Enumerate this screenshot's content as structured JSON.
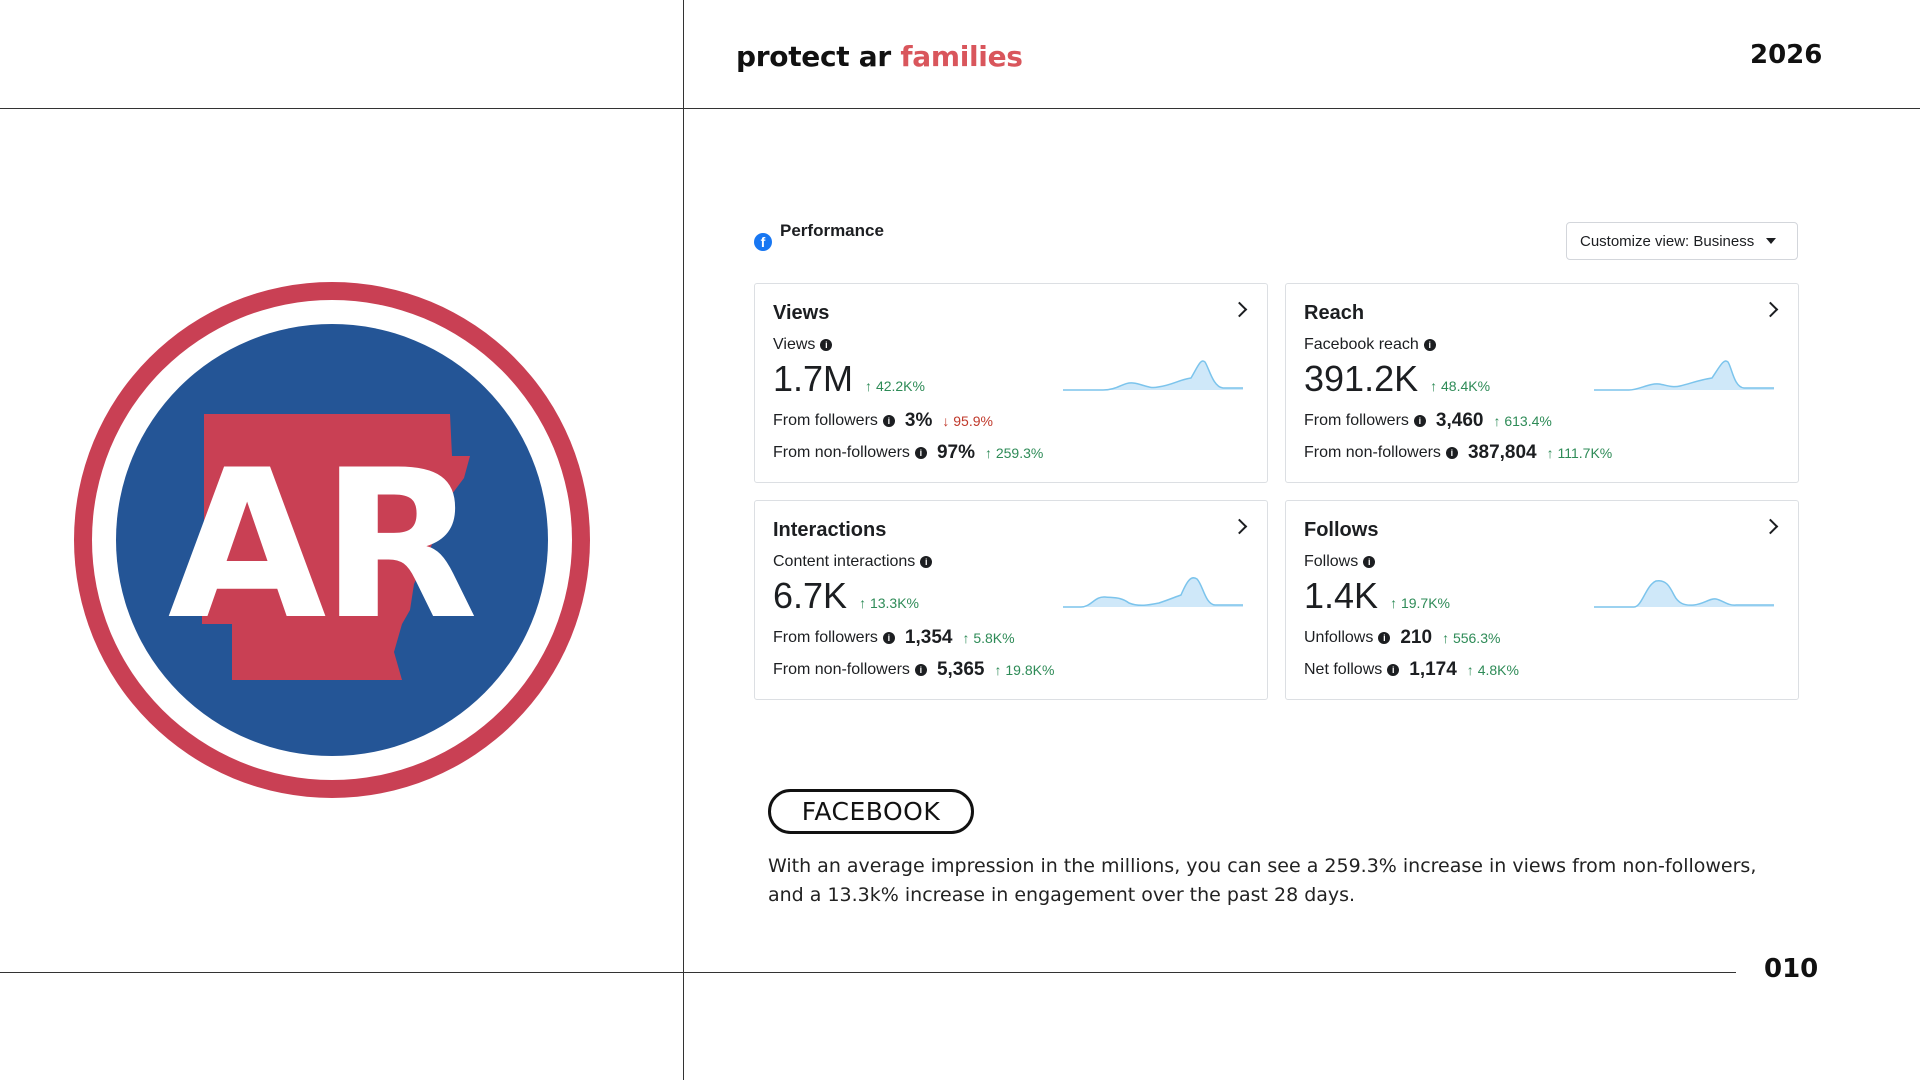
{
  "brand": {
    "prefix": "protect ar",
    "accent": "families",
    "accent_color": "#d9565c"
  },
  "year": "2026",
  "page_number": "010",
  "logo": {
    "text": "AR",
    "ring_color": "#c94054",
    "disc_color": "#245596",
    "state_color": "#c94054"
  },
  "performance": {
    "title": "Performance",
    "platform_icon": "facebook-icon",
    "customize_label": "Customize view: Business"
  },
  "cards": [
    {
      "title": "Views",
      "metric_label": "Views",
      "value": "1.7M",
      "change": "42.2K%",
      "change_dir": "up",
      "rows": [
        {
          "label": "From followers",
          "value": "3%",
          "change": "95.9%",
          "change_dir": "down"
        },
        {
          "label": "From non-followers",
          "value": "97%",
          "change": "259.3%",
          "change_dir": "up"
        }
      ]
    },
    {
      "title": "Reach",
      "metric_label": "Facebook reach",
      "value": "391.2K",
      "change": "48.4K%",
      "change_dir": "up",
      "rows": [
        {
          "label": "From followers",
          "value": "3,460",
          "change": "613.4%",
          "change_dir": "up"
        },
        {
          "label": "From non-followers",
          "value": "387,804",
          "change": "111.7K%",
          "change_dir": "up"
        }
      ]
    },
    {
      "title": "Interactions",
      "metric_label": "Content interactions",
      "value": "6.7K",
      "change": "13.3K%",
      "change_dir": "up",
      "rows": [
        {
          "label": "From followers",
          "value": "1,354",
          "change": "5.8K%",
          "change_dir": "up"
        },
        {
          "label": "From non-followers",
          "value": "5,365",
          "change": "19.8K%",
          "change_dir": "up"
        }
      ]
    },
    {
      "title": "Follows",
      "metric_label": "Follows",
      "value": "1.4K",
      "change": "19.7K%",
      "change_dir": "up",
      "rows": [
        {
          "label": "Unfollows",
          "value": "210",
          "change": "556.3%",
          "change_dir": "up"
        },
        {
          "label": "Net follows",
          "value": "1,174",
          "change": "4.8K%",
          "change_dir": "up"
        }
      ]
    }
  ],
  "section": {
    "label": "FACEBOOK",
    "description": "With an average impression in the millions, you can see a 259.3% increase in views from non-followers, and a 13.3k% increase in engagement over the past 28 days."
  }
}
